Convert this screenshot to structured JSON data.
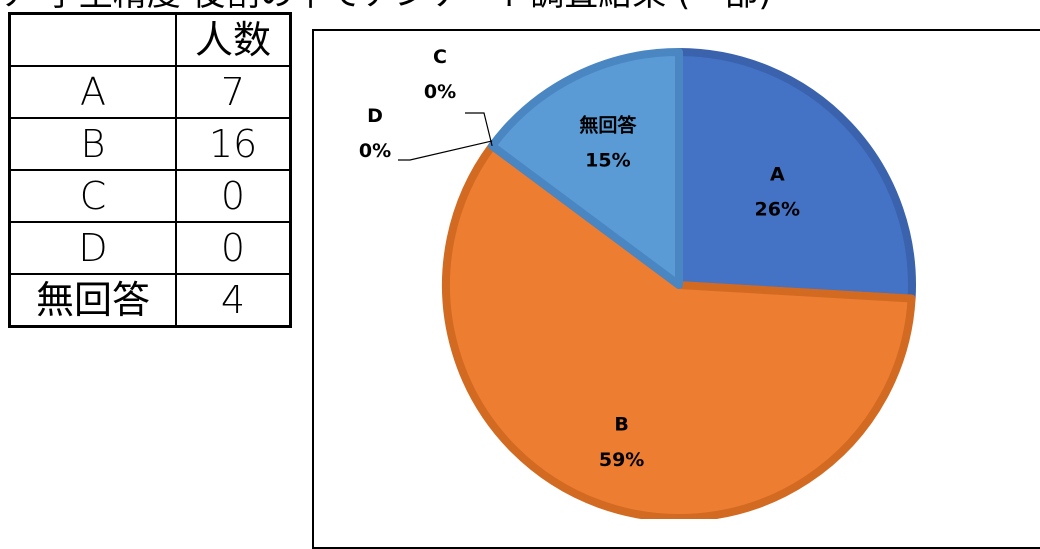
{
  "page": {
    "top_text_partial": "ア 学生精度 役割の中でアンケート調査結果 (一部)"
  },
  "table": {
    "header": [
      "",
      "人数"
    ],
    "rows": [
      {
        "label": "A",
        "value": "7"
      },
      {
        "label": "B",
        "value": "16"
      },
      {
        "label": "C",
        "value": "0"
      },
      {
        "label": "D",
        "value": "0"
      },
      {
        "label": "無回答",
        "value": "4"
      }
    ]
  },
  "chart_data": {
    "type": "pie",
    "categories": [
      "A",
      "B",
      "C",
      "D",
      "無回答"
    ],
    "values": [
      7,
      16,
      0,
      0,
      4
    ],
    "percent_labels": [
      "26%",
      "59%",
      "0%",
      "0%",
      "15%"
    ],
    "colors": {
      "A": "#4472C4",
      "B": "#ED7D31",
      "C": "#A5A5A5",
      "D": "#FFC000",
      "無回答": "#5B9BD5"
    },
    "edge_colors": {
      "A": "#3A62AD",
      "B": "#D36A22",
      "無回答": "#4A86C2"
    },
    "title": "",
    "legend": "none"
  }
}
